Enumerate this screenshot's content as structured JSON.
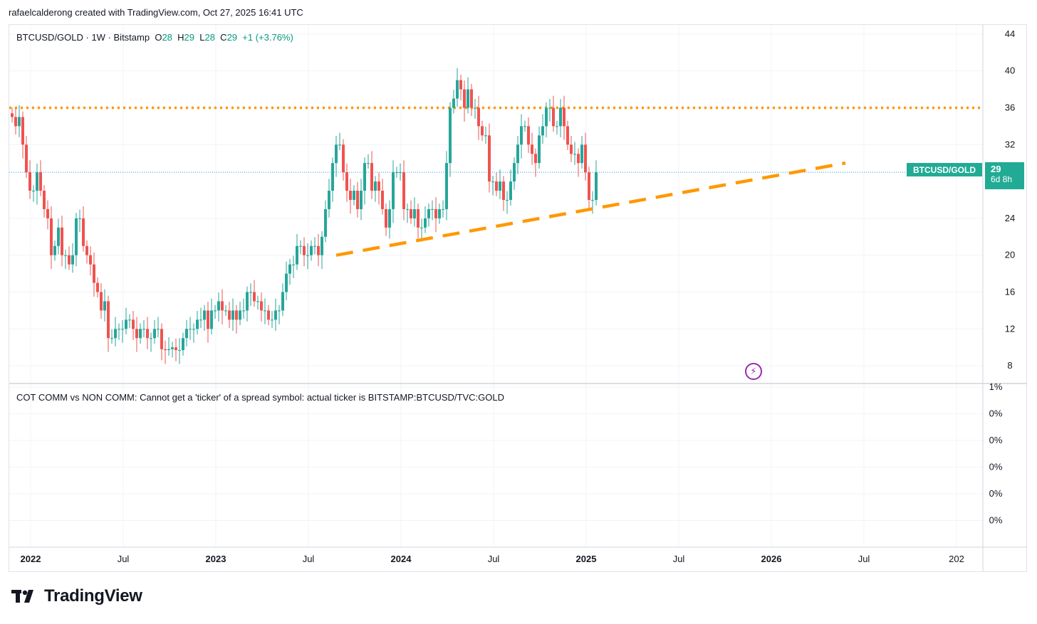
{
  "header": {
    "text": "rafaelcalderong created with TradingView.com, Oct 27, 2025 16:41 UTC"
  },
  "legend": {
    "symbol": "BTCUSD/GOLD · 1W · Bitstamp",
    "o_label": "O",
    "o_value": "28",
    "h_label": "H",
    "h_value": "29",
    "l_label": "L",
    "l_value": "28",
    "c_label": "C",
    "c_value": "29",
    "change": "+1 (+3.76%)"
  },
  "indicator": {
    "legend": "COT COMM vs NON COMM: Cannot get a 'ticker' of a spread symbol: actual ticker is BITSTAMP:BTCUSD/TVC:GOLD",
    "axis_labels": [
      "1%",
      "0%",
      "0%",
      "0%",
      "0%",
      "0%"
    ]
  },
  "price_tag": {
    "symbol": "BTCUSD/GOLD",
    "value": "29",
    "countdown": "6d 8h"
  },
  "brand": {
    "name": "TradingView"
  },
  "flash_icon": "lightning-icon",
  "colors": {
    "up": "#26a69a",
    "down": "#ef5350",
    "orange": "#ff9800",
    "grid": "#f0f3fa",
    "last": "#2196f3"
  },
  "chart_data": {
    "type": "candlestick",
    "title": "BTCUSD/GOLD · 1W · Bitstamp",
    "y_ticks": [
      "44",
      "40",
      "36",
      "32",
      "24",
      "20",
      "16",
      "12",
      "8"
    ],
    "ylim": [
      6.3,
      45
    ],
    "x_ticks": [
      "2022",
      "Jul",
      "2023",
      "Jul",
      "2024",
      "Jul",
      "2025",
      "Jul",
      "2026",
      "Jul",
      "202"
    ],
    "x_tick_weeks": [
      5,
      31,
      57,
      83,
      109,
      135,
      161,
      187,
      213,
      239,
      265
    ],
    "horizontal_level": 36,
    "trendline": {
      "from": {
        "week": 91,
        "value": 20
      },
      "to": {
        "week": 234,
        "value": 30
      }
    },
    "last_price": 29,
    "series": [
      {
        "name": "BTCUSD/GOLD",
        "close": [
          35,
          34,
          35,
          32,
          29,
          27,
          27,
          29,
          27,
          25,
          24,
          20,
          21,
          23,
          20,
          20,
          19,
          20,
          24,
          24,
          21,
          20,
          19,
          17,
          16,
          14,
          15,
          11,
          11,
          12,
          12,
          12,
          13,
          13,
          12,
          11,
          12,
          12,
          11,
          11,
          12,
          12,
          9.8,
          9.7,
          9.8,
          10,
          9.7,
          9.7,
          11,
          12,
          12,
          12,
          13,
          13,
          14,
          12,
          14,
          14,
          15,
          14,
          14,
          13,
          14,
          13,
          14,
          14,
          16,
          16,
          15,
          15,
          14,
          14,
          13,
          13,
          14,
          14,
          16,
          18,
          19,
          19,
          21,
          21,
          20,
          20,
          21,
          21,
          20,
          22,
          25,
          27,
          30,
          32,
          32,
          29,
          27,
          26,
          27,
          25,
          27,
          30,
          30,
          27,
          28,
          27,
          25,
          23,
          25,
          29,
          29,
          29,
          25,
          25,
          24,
          25,
          23,
          23,
          24,
          25,
          25,
          24,
          25,
          25,
          30,
          36,
          37,
          39,
          38,
          36,
          38,
          36,
          36,
          34,
          33,
          33,
          28,
          28,
          27,
          28,
          26,
          26,
          28,
          30,
          32,
          34,
          34,
          32,
          31,
          30,
          33,
          34,
          36,
          36,
          34,
          34,
          36,
          34,
          32,
          31,
          31,
          30,
          32,
          29,
          26,
          26,
          29
        ]
      }
    ]
  }
}
